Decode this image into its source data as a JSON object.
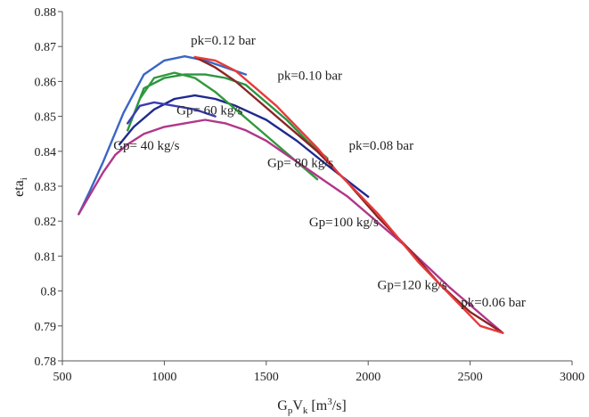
{
  "chart_data": {
    "type": "line",
    "xlabel": "GpVk [m³/s]",
    "xlabel_parts": {
      "G": "G",
      "p": "p",
      "V": "V",
      "k": "k",
      "rest": " [m",
      "sup": "3",
      "tail": "/s]"
    },
    "ylabel": "etai",
    "ylabel_parts": {
      "main": "eta",
      "sub": "i"
    },
    "xlim": [
      500,
      3000
    ],
    "ylim": [
      0.78,
      0.88
    ],
    "xticks": [
      500,
      1000,
      1500,
      2000,
      2500,
      3000
    ],
    "xtick_labels": [
      "500",
      "1000",
      "1500",
      "2000",
      "2500",
      "3000"
    ],
    "yticks": [
      0.78,
      0.79,
      0.8,
      0.81,
      0.82,
      0.83,
      0.84,
      0.85,
      0.86,
      0.87,
      0.88
    ],
    "ytick_labels": [
      "0.78",
      "0.79",
      "0.8",
      "0.81",
      "0.82",
      "0.83",
      "0.84",
      "0.85",
      "0.86",
      "0.87",
      "0.88"
    ],
    "grid": false,
    "series": [
      {
        "color": "#3a66c4",
        "x": [
          580,
          630,
          700,
          800,
          900,
          1000,
          1100,
          1200,
          1300,
          1400
        ],
        "y": [
          0.822,
          0.828,
          0.837,
          0.851,
          0.862,
          0.866,
          0.8672,
          0.866,
          0.864,
          0.862
        ]
      },
      {
        "color": "#2a9640",
        "x": [
          820,
          900,
          1000,
          1100,
          1200,
          1300,
          1400,
          1500,
          1600,
          1700,
          1800
        ],
        "y": [
          0.846,
          0.858,
          0.861,
          0.862,
          0.862,
          0.861,
          0.859,
          0.854,
          0.849,
          0.843,
          0.838
        ]
      },
      {
        "color": "#1e2a8e",
        "x": [
          780,
          850,
          950,
          1050,
          1150,
          1250,
          1350,
          1500,
          1650,
          1800,
          2000
        ],
        "y": [
          0.842,
          0.847,
          0.852,
          0.855,
          0.856,
          0.855,
          0.853,
          0.849,
          0.843,
          0.836,
          0.827
        ]
      },
      {
        "color": "#3c3cb4",
        "x": [
          820,
          880,
          950,
          1050,
          1150,
          1250
        ],
        "y": [
          0.848,
          0.853,
          0.854,
          0.853,
          0.852,
          0.85
        ]
      },
      {
        "color": "#2f9a3a",
        "x": [
          880,
          950,
          1050,
          1150,
          1250,
          1350,
          1450,
          1550,
          1650,
          1750
        ],
        "y": [
          0.855,
          0.861,
          0.8625,
          0.861,
          0.857,
          0.852,
          0.847,
          0.842,
          0.837,
          0.832
        ]
      },
      {
        "color": "#b0368a",
        "x": [
          580,
          630,
          700,
          760,
          820,
          900,
          1000,
          1100,
          1200,
          1300,
          1400,
          1500,
          1600,
          1700,
          1800,
          1900,
          2000,
          2200,
          2400,
          2660
        ],
        "y": [
          0.822,
          0.827,
          0.834,
          0.839,
          0.842,
          0.845,
          0.847,
          0.848,
          0.849,
          0.848,
          0.846,
          0.843,
          0.839,
          0.835,
          0.831,
          0.827,
          0.822,
          0.812,
          0.801,
          0.788
        ]
      },
      {
        "color": "#8b2525",
        "x": [
          1150,
          1250,
          1350,
          1450,
          1550,
          1650,
          1750,
          1900,
          2050,
          2200,
          2350,
          2500,
          2660
        ],
        "y": [
          0.867,
          0.864,
          0.86,
          0.855,
          0.85,
          0.845,
          0.84,
          0.831,
          0.821,
          0.812,
          0.802,
          0.794,
          0.788
        ]
      },
      {
        "color": "#e83a3a",
        "x": [
          1150,
          1250,
          1350,
          1450,
          1550,
          1650,
          1750,
          1850,
          1950,
          2050,
          2150,
          2250,
          2350,
          2450,
          2550,
          2660
        ],
        "y": [
          0.867,
          0.866,
          0.863,
          0.858,
          0.853,
          0.847,
          0.841,
          0.834,
          0.828,
          0.822,
          0.815,
          0.808,
          0.802,
          0.796,
          0.79,
          0.788
        ]
      }
    ],
    "annotations": [
      {
        "text": "pk=0.12 bar",
        "x": 1130,
        "y": 0.8705
      },
      {
        "text": "pk=0.10 bar",
        "x": 1555,
        "y": 0.8605
      },
      {
        "text": "pk=0.08 bar",
        "x": 1905,
        "y": 0.8405
      },
      {
        "text": "pk=0.06 bar",
        "x": 2455,
        "y": 0.7955
      },
      {
        "text": "Gp= 60 kg/s",
        "x": 1060,
        "y": 0.8505
      },
      {
        "text": "Gp= 40 kg/s",
        "x": 750,
        "y": 0.8405
      },
      {
        "text": "Gp= 80 kg/s",
        "x": 1505,
        "y": 0.8355
      },
      {
        "text": "Gp=100 kg/s",
        "x": 1710,
        "y": 0.8185
      },
      {
        "text": "Gp=120 kg/s",
        "x": 2045,
        "y": 0.8005
      }
    ]
  }
}
